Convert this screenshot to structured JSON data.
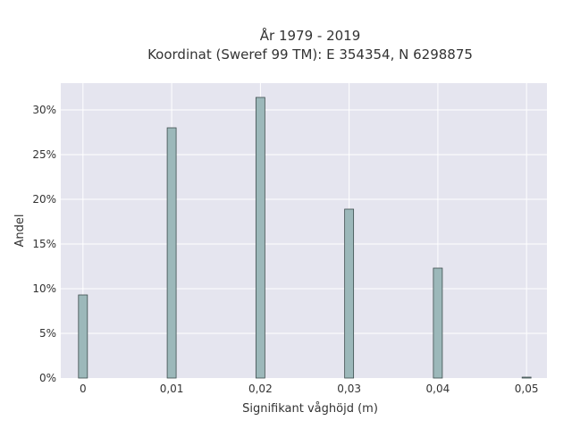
{
  "chart_data": {
    "type": "bar",
    "title_lines": [
      "År 1979 - 2019",
      "Koordinat (Sweref 99 TM): E 354354, N 6298875"
    ],
    "xlabel": "Signifikant våghöjd (m)",
    "ylabel": "Andel",
    "x": [
      0,
      0.01,
      0.02,
      0.03,
      0.04,
      0.05
    ],
    "x_tick_labels": [
      "0",
      "0,01",
      "0,02",
      "0,03",
      "0,04",
      "0,05"
    ],
    "values": [
      9.3,
      28.0,
      31.4,
      18.9,
      12.3,
      0.1
    ],
    "y_tick_values": [
      0,
      5,
      10,
      15,
      20,
      25,
      30
    ],
    "y_tick_labels": [
      "0%",
      "5%",
      "10%",
      "15%",
      "20%",
      "25%",
      "30%"
    ],
    "xlim": [
      -0.0025,
      0.0523
    ],
    "ylim": [
      0,
      33
    ],
    "grid": true,
    "legend": "none",
    "colors": {
      "plot_background": "#e5e5ef",
      "grid": "#ffffff",
      "bar_fill": "#9cb8ba",
      "bar_stroke": "#3d4d4d",
      "text": "#333333"
    }
  }
}
